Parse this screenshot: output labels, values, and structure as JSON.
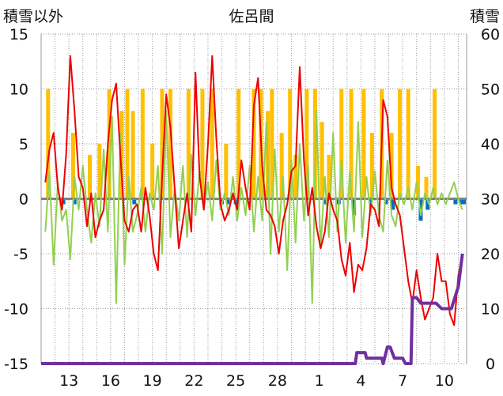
{
  "chart_data": {
    "type": "line",
    "title": "佐呂間",
    "left_axis": {
      "label": "積雪以外",
      "ylim": [
        -15,
        15
      ],
      "ticks": [
        15,
        10,
        5,
        0,
        -5,
        -10,
        -15
      ]
    },
    "right_axis": {
      "label": "積雪",
      "ylim": [
        0,
        60
      ],
      "ticks": [
        60,
        50,
        40,
        30,
        20,
        10,
        0
      ]
    },
    "x_axis": {
      "ticks": [
        "13",
        "16",
        "19",
        "22",
        "25",
        "28",
        "1",
        "4",
        "7",
        "10"
      ],
      "tick_days": [
        2,
        5,
        8,
        11,
        14,
        17,
        20,
        23,
        26,
        29
      ],
      "xlim": [
        0,
        30.6
      ]
    },
    "grid": {
      "vertical": true,
      "horizontal": true,
      "style": "dotted"
    },
    "colors": {
      "temperature": "#ee0000",
      "wind": "#92d050",
      "sunshine": "#ffc000",
      "precipitation": "#0070c0",
      "snow_depth": "#7030a0",
      "zero_line": "#808080"
    },
    "series": [
      {
        "role": "temperature",
        "axis": "left",
        "x": [
          0.3,
          0.6,
          0.9,
          1.2,
          1.5,
          1.8,
          2.1,
          2.4,
          2.7,
          3.0,
          3.3,
          3.6,
          3.9,
          4.2,
          4.5,
          4.8,
          5.1,
          5.4,
          5.7,
          6.0,
          6.3,
          6.6,
          6.9,
          7.2,
          7.5,
          7.8,
          8.1,
          8.4,
          8.7,
          9.0,
          9.3,
          9.6,
          9.9,
          10.2,
          10.5,
          10.8,
          11.1,
          11.4,
          11.7,
          12.0,
          12.3,
          12.6,
          12.9,
          13.2,
          13.5,
          13.8,
          14.1,
          14.4,
          14.7,
          15.0,
          15.3,
          15.6,
          15.9,
          16.2,
          16.5,
          16.8,
          17.1,
          17.4,
          17.7,
          18.0,
          18.3,
          18.6,
          18.9,
          19.2,
          19.5,
          19.8,
          20.1,
          20.4,
          20.7,
          21.0,
          21.3,
          21.6,
          21.9,
          22.2,
          22.5,
          22.8,
          23.1,
          23.4,
          23.7,
          24.0,
          24.3,
          24.6,
          24.9,
          25.2,
          25.5,
          25.8,
          26.1,
          26.4,
          26.7,
          27.0,
          27.3,
          27.6,
          27.9,
          28.2,
          28.5,
          28.8,
          29.1,
          29.4,
          29.7,
          30.0,
          30.3
        ],
        "values": [
          1.5,
          4.5,
          6.0,
          1.0,
          -1.0,
          4.0,
          13.0,
          8.0,
          2.0,
          1.0,
          -2.5,
          0.5,
          -3.5,
          -2.0,
          -1.0,
          5.0,
          9.0,
          10.5,
          4.0,
          -2.0,
          -3.0,
          -1.0,
          -0.5,
          -3.0,
          1.0,
          -1.5,
          -5.0,
          -6.5,
          2.0,
          9.5,
          6.5,
          1.0,
          -4.5,
          -2.0,
          0.5,
          -3.0,
          11.5,
          2.0,
          -1.0,
          5.0,
          13.0,
          5.5,
          -0.5,
          -2.0,
          -1.0,
          0.5,
          -1.0,
          3.5,
          1.0,
          -1.0,
          8.5,
          11.0,
          3.0,
          -1.0,
          -1.5,
          -2.5,
          -5.0,
          -2.0,
          -0.5,
          2.5,
          3.0,
          12.0,
          3.5,
          -1.5,
          1.0,
          -2.5,
          -4.5,
          -3.0,
          0.5,
          -1.0,
          -2.0,
          -5.5,
          -7.0,
          -4.0,
          -8.5,
          -6.0,
          -6.5,
          -4.5,
          -0.5,
          -1.0,
          -2.5,
          9.0,
          7.5,
          1.0,
          -0.5,
          -1.5,
          -4.5,
          -7.5,
          -9.5,
          -6.5,
          -9.0,
          -11.0,
          -10.0,
          -9.0,
          -5.0,
          -7.5,
          -7.5,
          -10.5,
          -11.5,
          -7.0,
          -5.0
        ]
      },
      {
        "role": "wind",
        "axis": "left",
        "x": [
          0.3,
          0.6,
          0.9,
          1.2,
          1.5,
          1.8,
          2.1,
          2.4,
          2.7,
          3.0,
          3.3,
          3.6,
          3.9,
          4.2,
          4.5,
          4.8,
          5.1,
          5.4,
          5.7,
          6.0,
          6.3,
          6.6,
          6.9,
          7.2,
          7.5,
          7.8,
          8.1,
          8.4,
          8.7,
          9.0,
          9.3,
          9.6,
          9.9,
          10.2,
          10.5,
          10.8,
          11.1,
          11.4,
          11.7,
          12.0,
          12.3,
          12.6,
          12.9,
          13.2,
          13.5,
          13.8,
          14.1,
          14.4,
          14.7,
          15.0,
          15.3,
          15.6,
          15.9,
          16.2,
          16.5,
          16.8,
          17.1,
          17.4,
          17.7,
          18.0,
          18.3,
          18.6,
          18.9,
          19.2,
          19.5,
          19.8,
          20.1,
          20.4,
          20.7,
          21.0,
          21.3,
          21.6,
          21.9,
          22.2,
          22.5,
          22.8,
          23.1,
          23.4,
          23.7,
          24.0,
          24.3,
          24.6,
          24.9,
          25.2,
          25.5,
          25.8,
          26.1,
          26.4,
          26.7,
          27.0,
          27.3,
          27.6,
          27.9,
          28.2,
          28.5,
          28.8,
          29.1,
          29.4,
          29.7,
          30.0,
          30.3
        ],
        "values": [
          -3.0,
          2.5,
          -6.0,
          1.5,
          -2.0,
          -1.0,
          -5.5,
          2.0,
          -1.0,
          3.0,
          -1.0,
          -4.0,
          0.5,
          -2.5,
          4.5,
          -3.0,
          7.5,
          -9.5,
          6.0,
          -6.0,
          2.0,
          -3.0,
          -1.5,
          1.0,
          -3.0,
          0.5,
          -1.0,
          3.0,
          -5.0,
          8.0,
          -3.5,
          1.0,
          -2.0,
          3.0,
          -3.5,
          4.0,
          -1.5,
          2.5,
          -1.0,
          1.5,
          -2.0,
          3.5,
          -1.0,
          0.5,
          -1.5,
          2.0,
          -2.0,
          1.0,
          -1.5,
          3.0,
          -3.0,
          2.0,
          -2.0,
          7.0,
          -5.0,
          4.5,
          -3.0,
          2.0,
          -6.5,
          3.5,
          -4.0,
          5.0,
          -2.0,
          3.0,
          -9.5,
          8.0,
          -4.5,
          2.0,
          -3.5,
          6.0,
          -3.0,
          3.5,
          -4.0,
          2.5,
          -3.0,
          7.0,
          -3.5,
          2.0,
          -1.5,
          2.5,
          -1.5,
          -3.0,
          3.5,
          -1.5,
          -2.5,
          0.5,
          -0.5,
          1.0,
          -1.0,
          1.5,
          -1.5,
          0.5,
          -0.5,
          1.0,
          -0.5,
          0.5,
          -0.5,
          0.5,
          1.5,
          0.0,
          -1.0
        ]
      },
      {
        "role": "snow_depth",
        "axis": "right",
        "x": [
          0.0,
          3.0,
          6.0,
          9.0,
          12.0,
          15.0,
          18.0,
          21.0,
          22.6,
          22.7,
          23.3,
          23.4,
          24.5,
          24.6,
          24.9,
          25.1,
          25.4,
          26.0,
          26.2,
          26.6,
          26.7,
          27.0,
          27.3,
          27.6,
          28.0,
          28.4,
          28.8,
          29.1,
          29.5,
          30.0,
          30.3
        ],
        "values": [
          0,
          0,
          0,
          0,
          0,
          0,
          0,
          0,
          0,
          2,
          2,
          1,
          1,
          0,
          3,
          3,
          1,
          1,
          0,
          0,
          12,
          12,
          11,
          11,
          11,
          11,
          10,
          10,
          10,
          14,
          20
        ]
      },
      {
        "role": "sunshine",
        "axis": "left",
        "type": "bar",
        "x": [
          0.5,
          2.3,
          3.5,
          4.2,
          4.9,
          5.8,
          6.2,
          6.6,
          7.3,
          8.0,
          8.7,
          9.3,
          10.6,
          11.6,
          12.3,
          13.3,
          14.2,
          15.3,
          15.8,
          16.3,
          16.6,
          17.3,
          17.9,
          18.3,
          19.1,
          19.7,
          20.2,
          20.7,
          21.6,
          22.3,
          23.2,
          23.8,
          24.5,
          25.2,
          25.8,
          26.4,
          27.1,
          27.7,
          28.3
        ],
        "values": [
          10,
          6,
          4,
          5,
          10,
          8,
          10,
          8,
          10,
          5,
          10,
          10,
          10,
          10,
          10,
          5,
          10,
          10,
          10,
          8,
          10,
          6,
          10,
          4,
          10,
          10,
          7,
          4,
          10,
          10,
          10,
          6,
          10,
          6,
          10,
          10,
          3,
          2,
          10
        ]
      },
      {
        "role": "precipitation",
        "axis": "left",
        "type": "bar",
        "x": [
          1.6,
          2.4,
          6.7,
          13.0,
          13.5,
          14.0,
          20.5,
          21.4,
          22.5,
          23.7,
          24.8,
          25.3,
          27.3,
          27.8,
          29.8,
          30.2,
          30.4
        ],
        "values": [
          -0.5,
          -0.5,
          -0.5,
          -0.5,
          -0.5,
          -0.5,
          -0.5,
          -0.5,
          -1.5,
          -0.5,
          -0.5,
          -1.0,
          -2.0,
          -1.0,
          -0.5,
          -0.5,
          -0.5
        ]
      }
    ]
  }
}
